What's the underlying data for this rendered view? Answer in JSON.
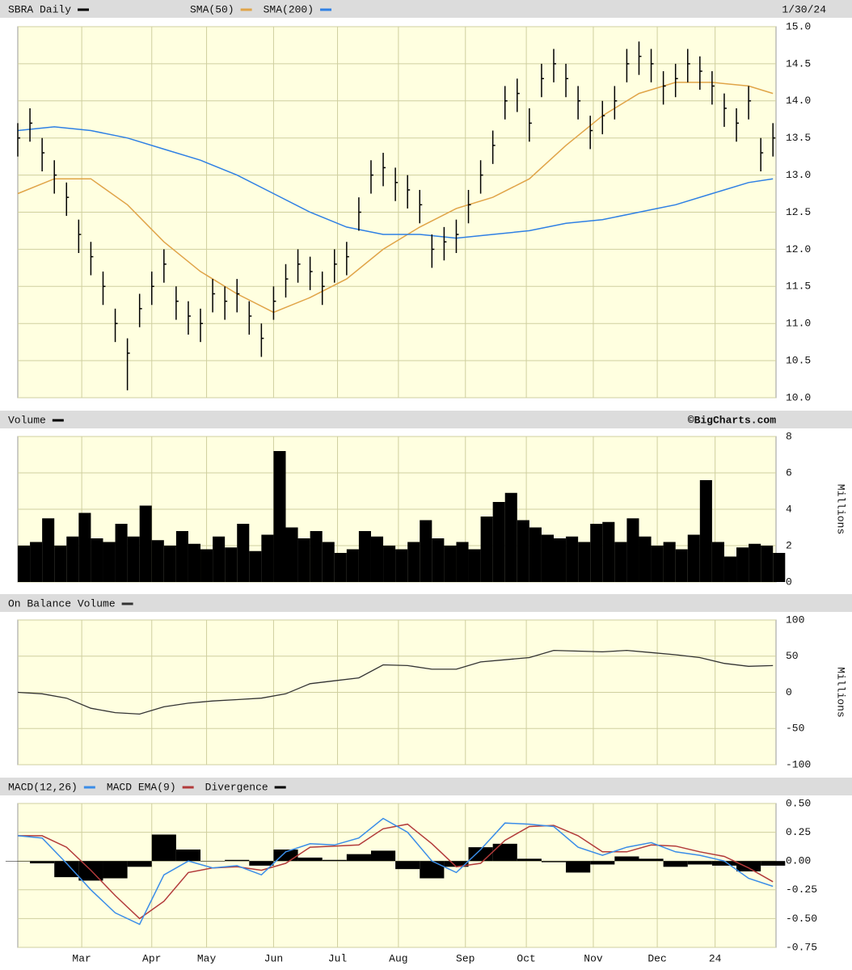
{
  "chart_data": [
    {
      "type": "ohlc",
      "title": "SBRA Daily",
      "date": "1/30/24",
      "color": "#000000",
      "x": [
        0,
        4,
        8,
        12,
        16,
        20,
        24,
        28,
        32,
        36,
        40,
        44,
        48,
        52,
        56,
        60,
        64,
        68,
        72,
        76,
        80,
        84,
        88,
        92,
        96,
        100,
        104,
        108,
        112,
        116,
        120,
        124,
        128,
        132,
        136,
        140,
        144,
        148,
        152,
        156,
        160,
        164,
        168,
        172,
        176,
        180,
        184,
        188,
        192,
        196,
        200,
        204,
        208,
        212,
        216,
        220,
        224,
        228,
        232,
        236,
        240,
        244,
        248
      ],
      "high": [
        13.7,
        13.9,
        13.5,
        13.2,
        12.9,
        12.4,
        12.1,
        11.7,
        11.2,
        10.8,
        11.4,
        11.7,
        12.0,
        11.5,
        11.3,
        11.2,
        11.6,
        11.5,
        11.6,
        11.3,
        11.0,
        11.5,
        11.8,
        12.0,
        11.9,
        11.7,
        12.0,
        12.1,
        12.7,
        13.2,
        13.3,
        13.1,
        13.0,
        12.8,
        12.2,
        12.3,
        12.4,
        12.8,
        13.2,
        13.6,
        14.2,
        14.3,
        13.9,
        14.5,
        14.7,
        14.5,
        14.2,
        13.8,
        14.0,
        14.2,
        14.7,
        14.8,
        14.7,
        14.4,
        14.5,
        14.7,
        14.6,
        14.4,
        14.1,
        13.9,
        14.2,
        13.5,
        13.7
      ],
      "low": [
        13.25,
        13.45,
        13.05,
        12.75,
        12.45,
        11.95,
        11.65,
        11.25,
        10.75,
        10.1,
        10.95,
        11.25,
        11.55,
        11.05,
        10.85,
        10.75,
        11.15,
        11.05,
        11.15,
        10.85,
        10.55,
        11.05,
        11.35,
        11.55,
        11.45,
        11.25,
        11.55,
        11.65,
        12.25,
        12.75,
        12.85,
        12.65,
        12.55,
        12.35,
        11.75,
        11.85,
        11.95,
        12.35,
        12.75,
        13.15,
        13.75,
        13.85,
        13.45,
        14.05,
        14.25,
        14.05,
        13.75,
        13.35,
        13.55,
        13.75,
        14.25,
        14.35,
        14.25,
        13.95,
        14.05,
        14.25,
        14.15,
        13.95,
        13.65,
        13.45,
        13.75,
        13.05,
        13.25
      ],
      "close": [
        13.5,
        13.7,
        13.3,
        13.0,
        12.7,
        12.2,
        11.9,
        11.5,
        11.0,
        10.6,
        11.2,
        11.5,
        11.8,
        11.3,
        11.1,
        11.0,
        11.4,
        11.3,
        11.4,
        11.1,
        10.8,
        11.3,
        11.6,
        11.8,
        11.7,
        11.5,
        11.8,
        11.9,
        12.5,
        13.0,
        13.1,
        12.9,
        12.8,
        12.6,
        12.0,
        12.1,
        12.2,
        12.6,
        13.0,
        13.4,
        14.0,
        14.1,
        13.7,
        14.3,
        14.5,
        14.3,
        14.0,
        13.6,
        13.8,
        14.0,
        14.5,
        14.6,
        14.5,
        14.2,
        14.3,
        14.5,
        14.4,
        14.2,
        13.9,
        13.7,
        14.0,
        13.3,
        13.5
      ],
      "series": [
        {
          "name": "SMA(50)",
          "color": "#e0a448",
          "x": [
            0,
            12,
            24,
            36,
            48,
            60,
            72,
            84,
            96,
            108,
            120,
            132,
            144,
            156,
            168,
            180,
            192,
            204,
            216,
            228,
            240,
            248
          ],
          "values": [
            12.75,
            12.95,
            12.95,
            12.6,
            12.1,
            11.7,
            11.4,
            11.15,
            11.35,
            11.6,
            12.0,
            12.3,
            12.55,
            12.7,
            12.95,
            13.4,
            13.8,
            14.1,
            14.25,
            14.25,
            14.2,
            14.1
          ]
        },
        {
          "name": "SMA(200)",
          "color": "#2f80e4",
          "x": [
            0,
            12,
            24,
            36,
            48,
            60,
            72,
            84,
            96,
            108,
            120,
            132,
            144,
            156,
            168,
            180,
            192,
            204,
            216,
            228,
            240,
            248
          ],
          "values": [
            13.6,
            13.65,
            13.6,
            13.5,
            13.35,
            13.2,
            13.0,
            12.75,
            12.5,
            12.3,
            12.2,
            12.2,
            12.15,
            12.2,
            12.25,
            12.35,
            12.4,
            12.5,
            12.6,
            12.75,
            12.9,
            12.95
          ]
        }
      ],
      "ylim": [
        10,
        15
      ],
      "yticks": [
        {
          "value": 10,
          "label": "10.0"
        },
        10.5,
        {
          "value": 11,
          "label": "11.0"
        },
        11.5,
        {
          "value": 12,
          "label": "12.0"
        },
        12.5,
        {
          "value": 13,
          "label": "13.0"
        },
        13.5,
        {
          "value": 14,
          "label": "14.0"
        },
        14.5,
        {
          "value": 15,
          "label": "15.0"
        }
      ],
      "grid": true
    },
    {
      "type": "bar",
      "title": "Volume",
      "credit": "©BigCharts.com",
      "ylabel": "Millions",
      "color": "#000000",
      "x": [
        0,
        4,
        8,
        12,
        16,
        20,
        24,
        28,
        32,
        36,
        40,
        44,
        48,
        52,
        56,
        60,
        64,
        68,
        72,
        76,
        80,
        84,
        88,
        92,
        96,
        100,
        104,
        108,
        112,
        116,
        120,
        124,
        128,
        132,
        136,
        140,
        144,
        148,
        152,
        156,
        160,
        164,
        168,
        172,
        176,
        180,
        184,
        188,
        192,
        196,
        200,
        204,
        208,
        212,
        216,
        220,
        224,
        228,
        232,
        236,
        240,
        244,
        248
      ],
      "values": [
        2.0,
        2.2,
        3.5,
        2.0,
        2.5,
        3.8,
        2.4,
        2.2,
        3.2,
        2.5,
        4.2,
        2.3,
        2.0,
        2.8,
        2.1,
        1.8,
        2.5,
        1.9,
        3.2,
        1.7,
        2.6,
        7.2,
        3.0,
        2.4,
        2.8,
        2.2,
        1.6,
        1.8,
        2.8,
        2.5,
        2.0,
        1.8,
        2.2,
        3.4,
        2.4,
        2.0,
        2.2,
        1.8,
        3.6,
        4.4,
        4.9,
        3.4,
        3.0,
        2.6,
        2.4,
        2.5,
        2.2,
        3.2,
        3.3,
        2.2,
        3.5,
        2.5,
        2.0,
        2.2,
        1.8,
        2.6,
        5.6,
        2.2,
        1.4,
        1.9,
        2.1,
        2.0,
        1.6
      ],
      "ylim": [
        0,
        8
      ],
      "yticks": [
        0,
        2,
        4,
        6,
        8
      ],
      "grid": true
    },
    {
      "type": "line",
      "title": "On Balance Volume",
      "ylabel": "Millions",
      "color": "#333333",
      "x": [
        0,
        8,
        16,
        24,
        32,
        40,
        48,
        56,
        64,
        72,
        80,
        88,
        96,
        104,
        112,
        120,
        128,
        136,
        144,
        152,
        160,
        168,
        176,
        184,
        192,
        200,
        208,
        216,
        224,
        232,
        240,
        248
      ],
      "values": [
        0,
        -2,
        -8,
        -22,
        -28,
        -30,
        -20,
        -15,
        -12,
        -10,
        -8,
        -2,
        12,
        16,
        20,
        38,
        37,
        32,
        32,
        42,
        45,
        48,
        58,
        57,
        56,
        58,
        55,
        52,
        48,
        40,
        36,
        37
      ],
      "ylim": [
        -100,
        100
      ],
      "yticks": [
        -100,
        -50,
        0,
        50,
        100
      ],
      "grid": true
    },
    {
      "type": "macd",
      "x": [
        0,
        8,
        16,
        24,
        32,
        40,
        48,
        56,
        64,
        72,
        80,
        88,
        96,
        104,
        112,
        120,
        128,
        136,
        144,
        152,
        160,
        168,
        176,
        184,
        192,
        200,
        208,
        216,
        224,
        232,
        240,
        248
      ],
      "series": [
        {
          "name": "MACD(12,26)",
          "color": "#3a8de8",
          "values": [
            0.22,
            0.2,
            -0.02,
            -0.25,
            -0.45,
            -0.55,
            -0.12,
            0.0,
            -0.06,
            -0.04,
            -0.12,
            0.08,
            0.15,
            0.14,
            0.2,
            0.37,
            0.25,
            0.0,
            -0.1,
            0.1,
            0.33,
            0.32,
            0.3,
            0.12,
            0.05,
            0.12,
            0.16,
            0.08,
            0.05,
            0.0,
            -0.15,
            -0.22
          ]
        },
        {
          "name": "MACD EMA(9)",
          "color": "#b23a3a",
          "values": [
            0.22,
            0.22,
            0.12,
            -0.08,
            -0.3,
            -0.5,
            -0.35,
            -0.1,
            -0.06,
            -0.05,
            -0.08,
            -0.02,
            0.12,
            0.13,
            0.14,
            0.28,
            0.32,
            0.15,
            -0.05,
            -0.02,
            0.18,
            0.3,
            0.31,
            0.22,
            0.08,
            0.08,
            0.14,
            0.13,
            0.08,
            0.04,
            -0.06,
            -0.18
          ]
        },
        {
          "name": "Divergence",
          "color": "#000000",
          "values": [
            0,
            -0.02,
            -0.14,
            -0.17,
            -0.15,
            -0.05,
            0.23,
            0.1,
            0,
            0.01,
            -0.04,
            0.1,
            0.03,
            0.01,
            0.06,
            0.09,
            -0.07,
            -0.15,
            -0.05,
            0.12,
            0.15,
            0.02,
            -0.01,
            -0.1,
            -0.03,
            0.04,
            0.02,
            -0.05,
            -0.03,
            -0.04,
            -0.09,
            -0.04
          ]
        }
      ],
      "ylim": [
        -0.75,
        0.5
      ],
      "yticks": [
        -0.75,
        {
          "value": -0.5,
          "label": "-0.50"
        },
        -0.25,
        {
          "value": 0,
          "label": "0.00"
        },
        0.25,
        {
          "value": 0.5,
          "label": "0.50"
        }
      ],
      "grid": true,
      "xlim": [
        0,
        249
      ],
      "xticks": [
        {
          "value": 21,
          "label": "Mar"
        },
        {
          "value": 44,
          "label": "Apr"
        },
        {
          "value": 62,
          "label": "May"
        },
        {
          "value": 84,
          "label": "Jun"
        },
        {
          "value": 105,
          "label": "Jul"
        },
        {
          "value": 125,
          "label": "Aug"
        },
        {
          "value": 147,
          "label": "Sep"
        },
        {
          "value": 167,
          "label": "Oct"
        },
        {
          "value": 189,
          "label": "Nov"
        },
        {
          "value": 210,
          "label": "Dec"
        },
        {
          "value": 229,
          "label": "24"
        }
      ]
    }
  ]
}
